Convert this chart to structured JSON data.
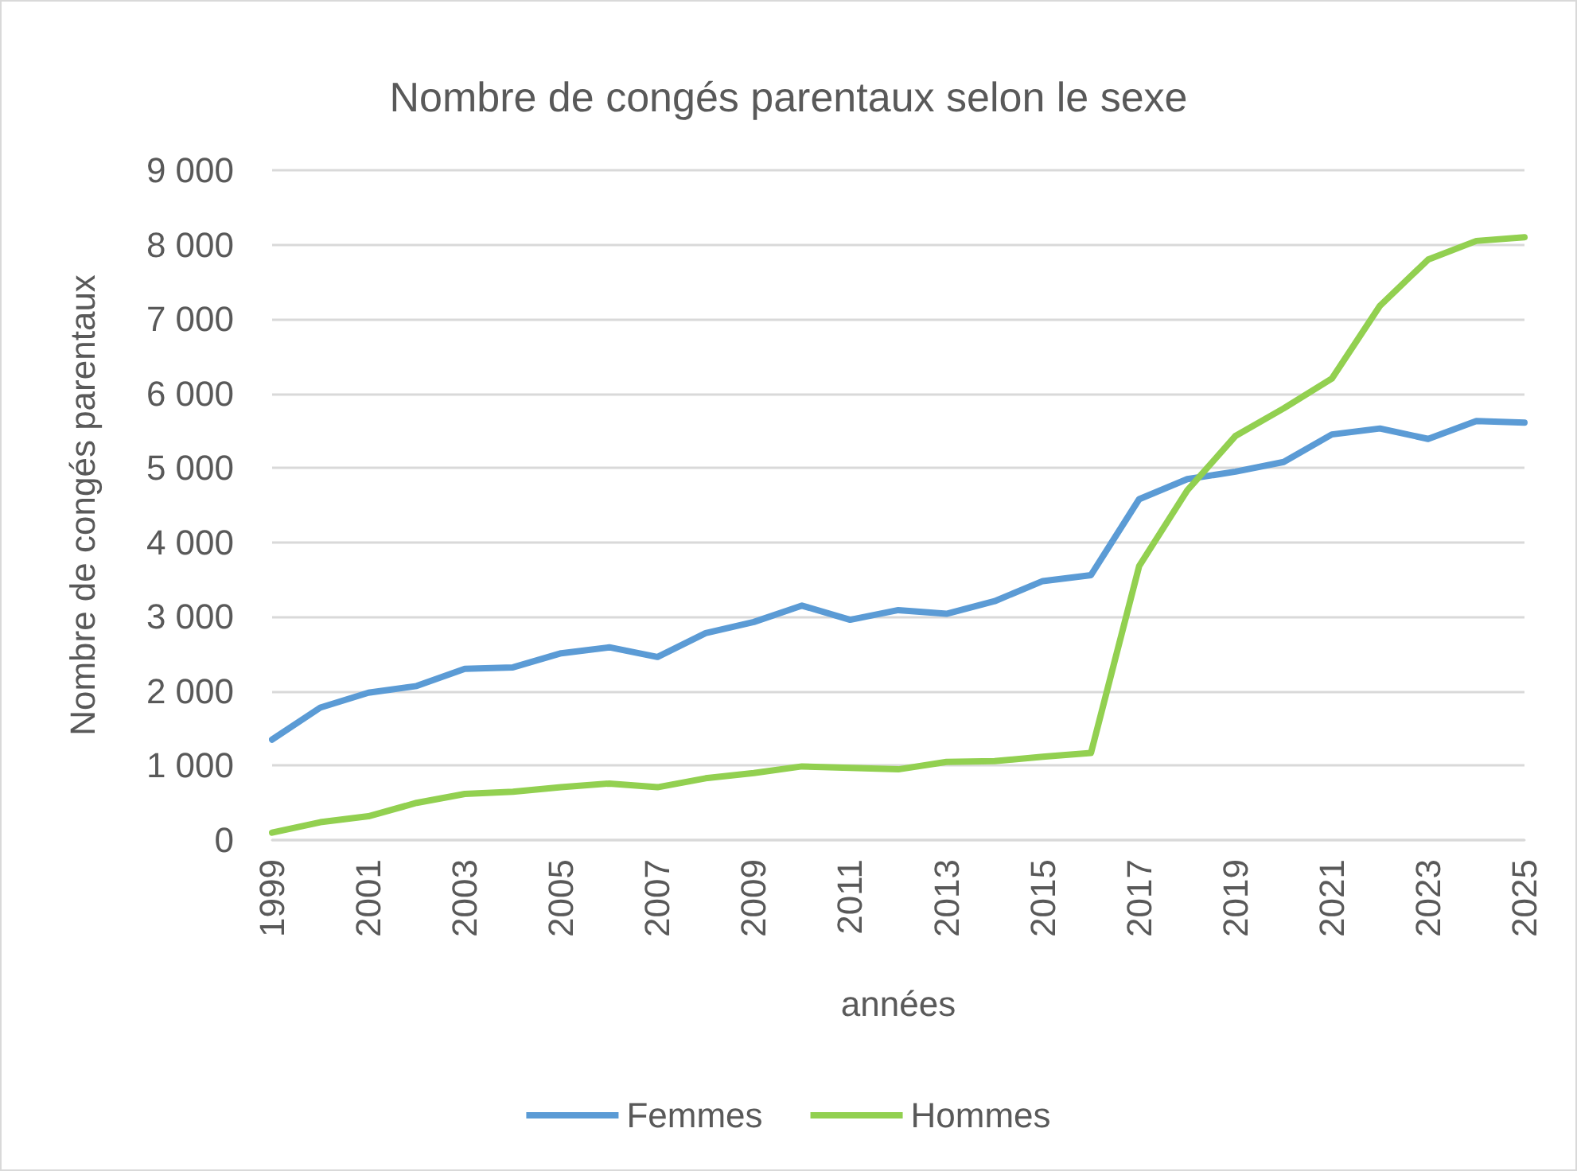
{
  "chart_data": {
    "type": "line",
    "title": "Nombre de congés parentaux selon le sexe",
    "xlabel": "années",
    "ylabel": "Nombre de congés parentaux",
    "categories": [
      "1999",
      null,
      "2001",
      null,
      "2003",
      null,
      "2005",
      null,
      "2007",
      null,
      "2009",
      null,
      "2011",
      null,
      "2013",
      null,
      "2015",
      null,
      "2017",
      null,
      "2019",
      null,
      "2021",
      null,
      "2023",
      null,
      "2025"
    ],
    "series": [
      {
        "name": "Femmes",
        "color": "#5b9bd5",
        "values": [
          1350,
          1780,
          1980,
          2070,
          2300,
          2320,
          2510,
          2590,
          2460,
          2780,
          2930,
          3150,
          2960,
          3090,
          3040,
          3210,
          3480,
          3560,
          4580,
          4850,
          4950,
          5080,
          5450,
          5530,
          5390,
          5630,
          5610
        ]
      },
      {
        "name": "Hommes",
        "color": "#92d050",
        "values": [
          100,
          240,
          320,
          500,
          620,
          650,
          710,
          760,
          710,
          830,
          900,
          990,
          970,
          950,
          1050,
          1060,
          1120,
          1170,
          3680,
          4700,
          5430,
          5800,
          6200,
          7180,
          7800,
          8050,
          8100
        ]
      }
    ],
    "ylim": [
      0,
      9000
    ],
    "yticks": [
      {
        "value": 0,
        "label": "0"
      },
      {
        "value": 1000,
        "label": "1 000"
      },
      {
        "value": 2000,
        "label": "2 000"
      },
      {
        "value": 3000,
        "label": "3 000"
      },
      {
        "value": 4000,
        "label": "4 000"
      },
      {
        "value": 5000,
        "label": "5 000"
      },
      {
        "value": 6000,
        "label": "6 000"
      },
      {
        "value": 7000,
        "label": "7 000"
      },
      {
        "value": 8000,
        "label": "8 000"
      },
      {
        "value": 9000,
        "label": "9 000"
      }
    ],
    "grid": "y",
    "legend": "bottom",
    "marker": "none",
    "line_style": "solid"
  }
}
